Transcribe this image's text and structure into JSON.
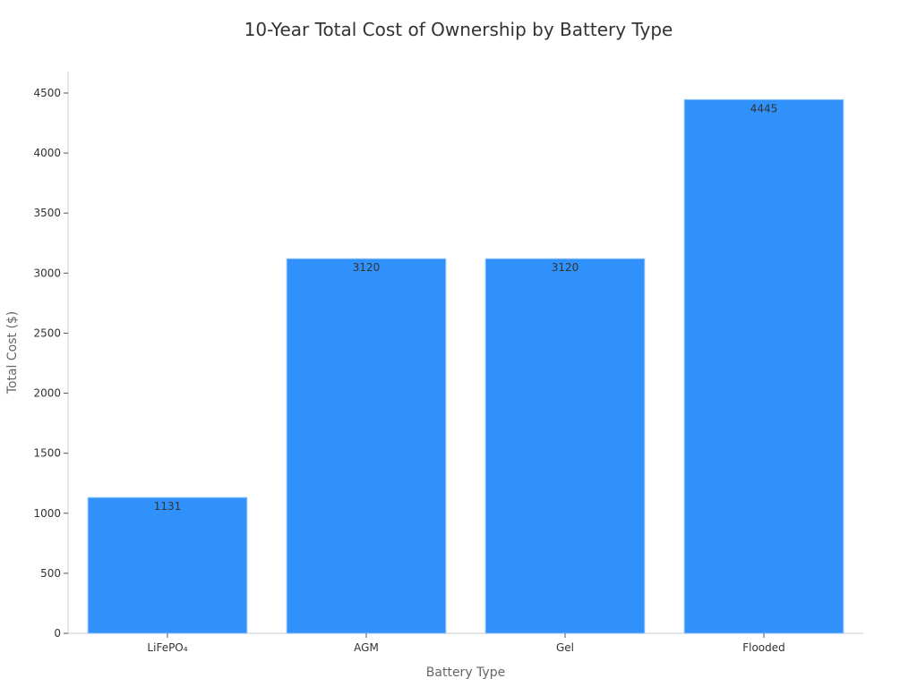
{
  "chart_data": {
    "type": "bar",
    "title": "10-Year Total Cost of Ownership by Battery Type",
    "xlabel": "Battery Type",
    "ylabel": "Total Cost ($)",
    "categories": [
      "LiFePO₄",
      "AGM",
      "Gel",
      "Flooded"
    ],
    "values": [
      1131,
      3120,
      3120,
      4445
    ],
    "data_labels": [
      "1131",
      "3120",
      "3120",
      "4445"
    ],
    "ylim": [
      0,
      4675
    ],
    "yticks": [
      0,
      500,
      1000,
      1500,
      2000,
      2500,
      3000,
      3500,
      4000,
      4500
    ],
    "grid": false,
    "legend": "none",
    "colors": {
      "bar_fill": "#2f91f9",
      "bar_stroke": "#8ec3fb"
    }
  }
}
